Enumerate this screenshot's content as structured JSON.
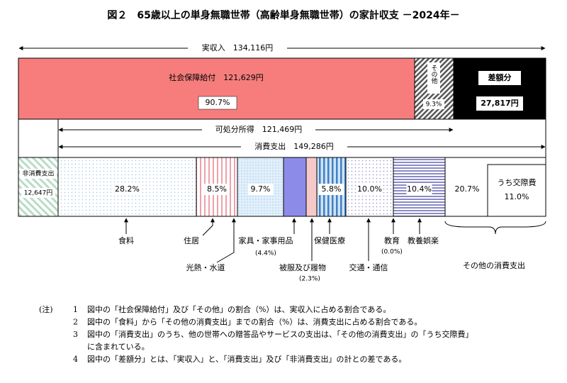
{
  "title": "図２　65歳以上の単身無職世帯（高齢単身無職世帯）の家計収支 －2024年－",
  "income": "実収入　134,116円",
  "top_bar": {
    "social": {
      "label": "社会保障給付　121,629円",
      "share": "90.7%"
    },
    "other": {
      "label": "その他",
      "share": "9.3%"
    },
    "deficit": {
      "label": "差額分",
      "amount": "27,817円"
    }
  },
  "disposable": "可処分所得　121,469円",
  "consumption": "消費支出　149,286円",
  "non_consumption": {
    "label": "非消費支出",
    "amount": "12,647円"
  },
  "items": [
    {
      "label": "食料",
      "share": "28.2%"
    },
    {
      "label": "住居",
      "share": "8.5%"
    },
    {
      "label": "光熱・水道",
      "share": "9.7%"
    },
    {
      "label": "家具・家事用品",
      "share": "(4.4%)"
    },
    {
      "label": "被服及び履物",
      "share": "(2.3%)"
    },
    {
      "label": "保健医療",
      "share": "5.8%"
    },
    {
      "label": "交通・通信",
      "share": "10.0%"
    },
    {
      "label": "教育",
      "share": "(0.0%)"
    },
    {
      "label": "教養娯楽",
      "share": "10.4%"
    },
    {
      "label": "その他の消費支出",
      "share": "20.7%"
    }
  ],
  "entertainment": {
    "label": "うち交際費",
    "share": "11.0%"
  },
  "notes": {
    "header": "(注)",
    "items": [
      {
        "num": "1",
        "lines": [
          "図中の「社会保障給付」及び「その他」の割合（%）は、実収入に占める割合である。"
        ]
      },
      {
        "num": "2",
        "lines": [
          "図中の「食料」から「その他の消費支出」までの割合（%）は、消費支出に占める割合である。"
        ]
      },
      {
        "num": "3",
        "lines": [
          "図中の「消費支出」のうち、他の世帯への贈答品やサービスの支出は、「その他の消費支出」の「うち交際費」",
          "に含まれている。"
        ]
      },
      {
        "num": "4",
        "lines": [
          "図中の「差額分」とは、「実収入」と、「消費支出」及び「非消費支出」の計との差である。"
        ]
      }
    ]
  }
}
